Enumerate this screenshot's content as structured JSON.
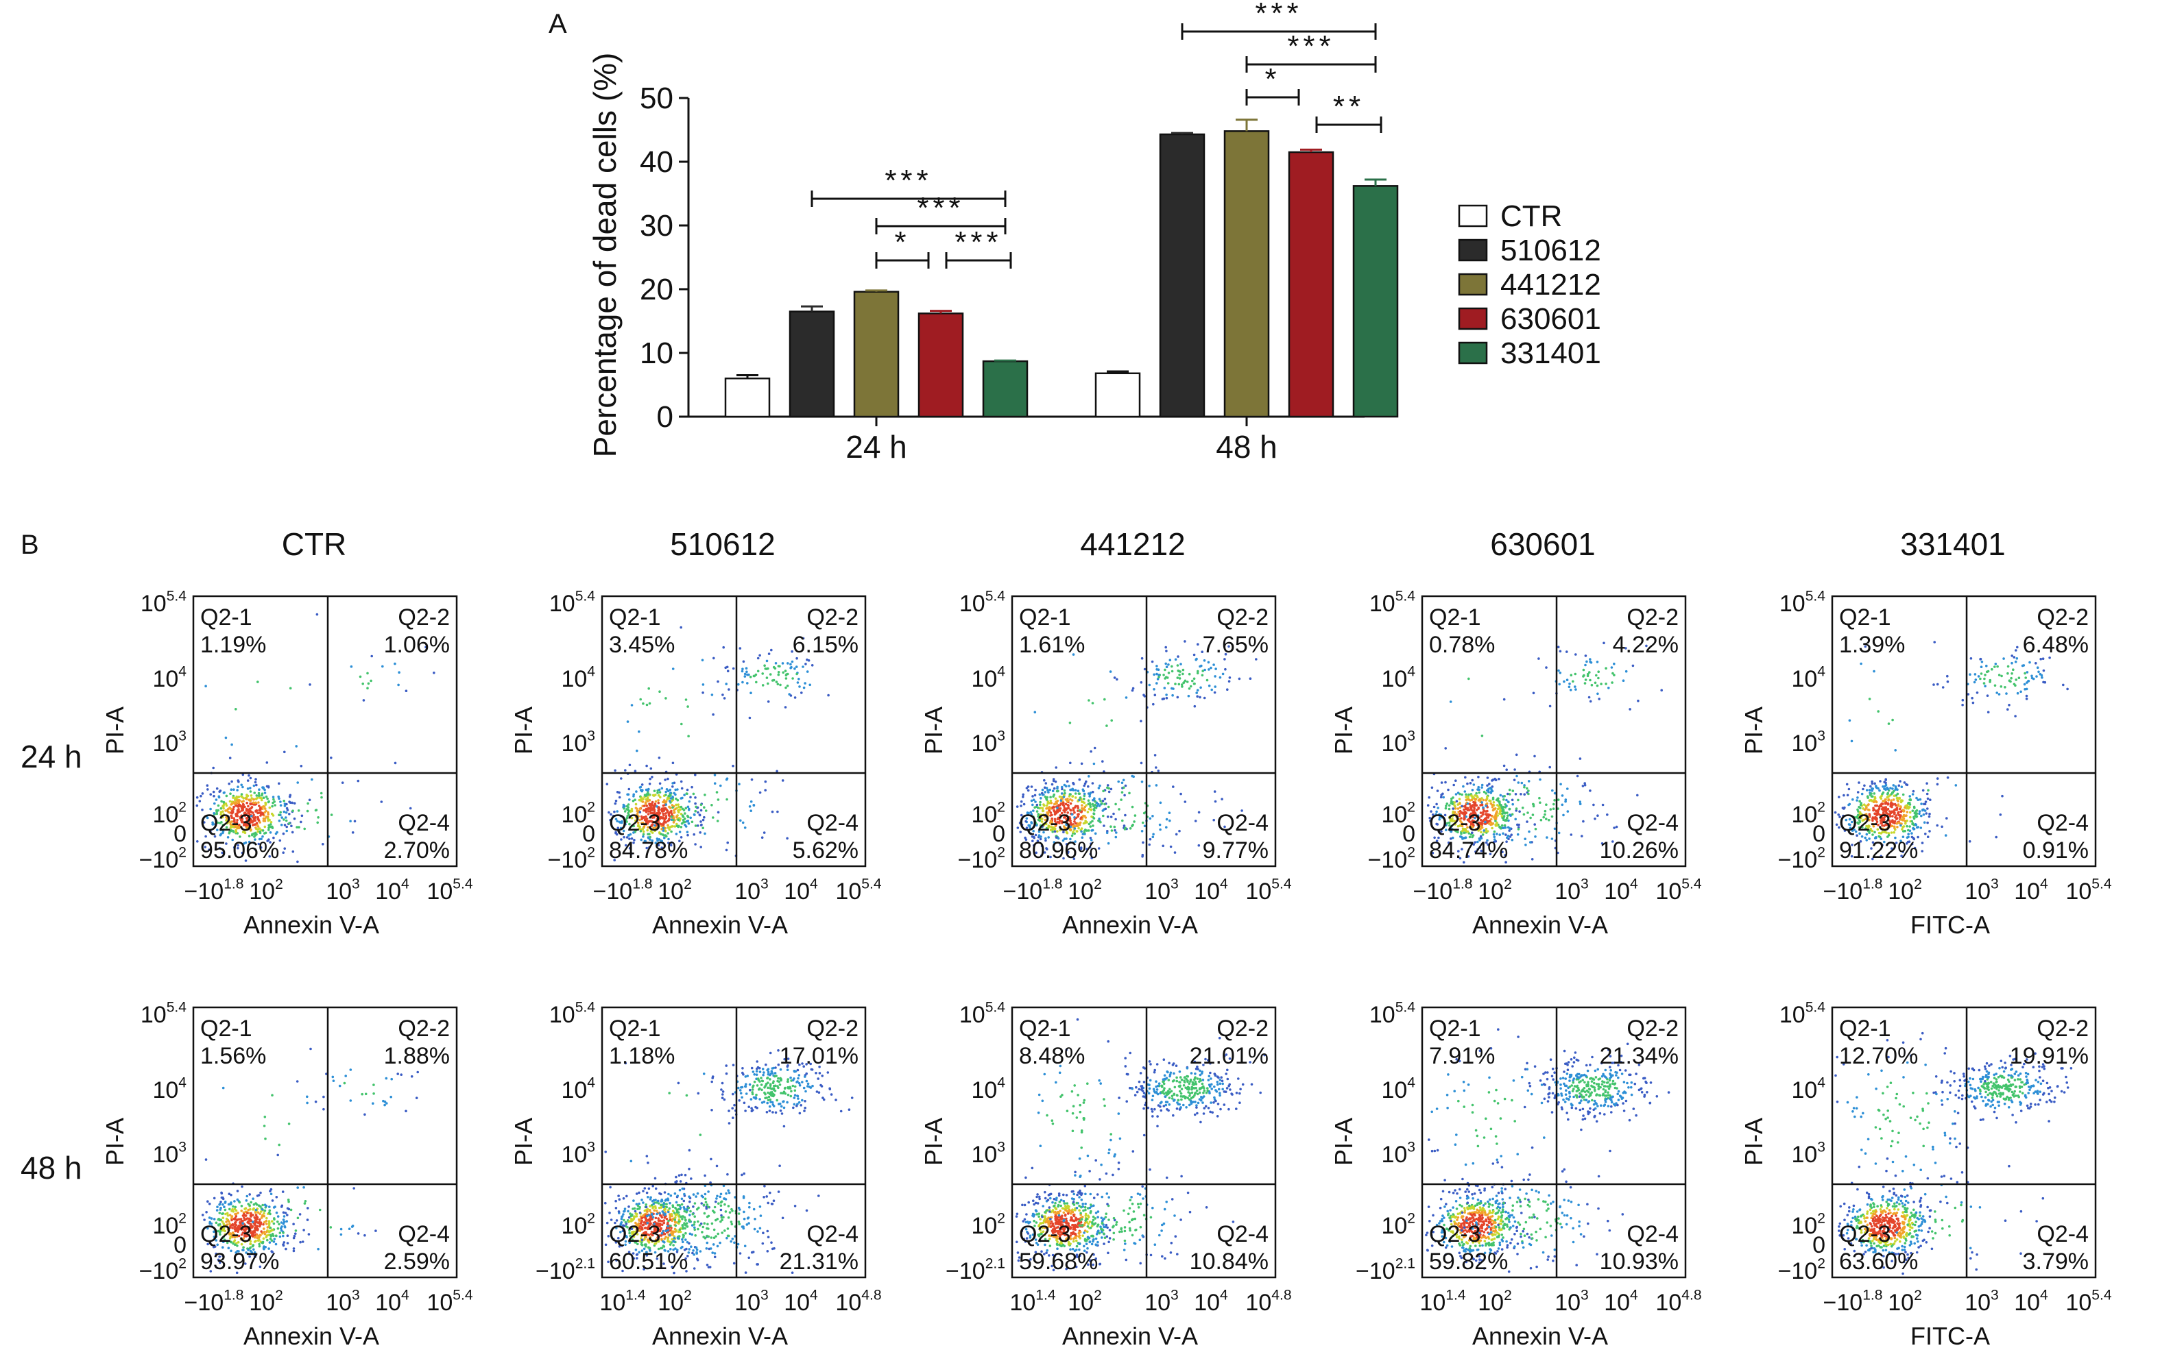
{
  "panel_a": {
    "label": "A",
    "ylabel": "Percentage of dead cells (%)",
    "yticks": [
      "0",
      "10",
      "20",
      "30",
      "40",
      "50"
    ],
    "legend": [
      {
        "name": "CTR",
        "color": "#ffffff"
      },
      {
        "name": "510612",
        "color": "#2b2b2b"
      },
      {
        "name": "441212",
        "color": "#7d7538"
      },
      {
        "name": "630601",
        "color": "#9f1c22"
      },
      {
        "name": "331401",
        "color": "#2b7049"
      }
    ],
    "groups": [
      "24 h",
      "48 h"
    ]
  },
  "chart_data": {
    "type": "bar",
    "categories": [
      "24 h",
      "48 h"
    ],
    "ylabel": "Percentage of dead cells (%)",
    "ylim": [
      0,
      50
    ],
    "grid": false,
    "legend_position": "right",
    "series": [
      {
        "name": "CTR",
        "color": "#ffffff",
        "values": [
          6.0,
          6.8
        ],
        "errors": [
          0.5,
          0.3
        ]
      },
      {
        "name": "510612",
        "color": "#2b2b2b",
        "values": [
          16.5,
          44.3
        ],
        "errors": [
          0.8,
          0.2
        ]
      },
      {
        "name": "441212",
        "color": "#7d7538",
        "values": [
          19.6,
          44.8
        ],
        "errors": [
          0.2,
          1.8
        ]
      },
      {
        "name": "630601",
        "color": "#9f1c22",
        "values": [
          16.2,
          41.5
        ],
        "errors": [
          0.4,
          0.4
        ]
      },
      {
        "name": "331401",
        "color": "#2b7049",
        "values": [
          8.7,
          36.2
        ],
        "errors": [
          0.1,
          1.0
        ]
      }
    ],
    "significance": [
      {
        "group": 0,
        "from": 1,
        "to": 4,
        "label": "***"
      },
      {
        "group": 0,
        "from": 2,
        "to": 4,
        "label": "***"
      },
      {
        "group": 0,
        "from": 2,
        "to": 3,
        "label": "*"
      },
      {
        "group": 0,
        "from": 3,
        "to": 4,
        "label": "***"
      },
      {
        "group": 1,
        "from": 1,
        "to": 4,
        "label": "***"
      },
      {
        "group": 1,
        "from": 2,
        "to": 4,
        "label": "***"
      },
      {
        "group": 1,
        "from": 2,
        "to": 3,
        "label": "*"
      },
      {
        "group": 1,
        "from": 3,
        "to": 4,
        "label": "**"
      }
    ]
  },
  "panel_b": {
    "label": "B",
    "columns": [
      "CTR",
      "510612",
      "441212",
      "630601",
      "331401"
    ],
    "rows": [
      "24 h",
      "48 h"
    ],
    "ylabel": "PI-A",
    "quadrant_names": [
      "Q2-1",
      "Q2-2",
      "Q2-3",
      "Q2-4"
    ],
    "yticks_common": {
      "top": "10",
      "top_exp": "5.4",
      "t4": "10",
      "t4_exp": "4",
      "t3": "10",
      "t3_exp": "3",
      "t2": "10",
      "t2_exp": "2",
      "zero": "0"
    },
    "xticks_common": {
      "t3": "10",
      "t3_exp": "3",
      "t4": "10",
      "t4_exp": "4"
    },
    "plots": [
      {
        "xlabel": "Annexin V-A",
        "q1": "1.19%",
        "q2": "1.06%",
        "q3": "95.06%",
        "q4": "2.70%",
        "xmin": "−10",
        "xmin_exp": "1.8",
        "xmax": "10",
        "xmax_exp": "5.4",
        "ymin": "−10",
        "ymin_exp": "2",
        "show_y2": "true"
      },
      {
        "xlabel": "Annexin V-A",
        "q1": "3.45%",
        "q2": "6.15%",
        "q3": "84.78%",
        "q4": "5.62%",
        "xmin": "−10",
        "xmin_exp": "1.8",
        "xmax": "10",
        "xmax_exp": "5.4",
        "ymin": "−10",
        "ymin_exp": "2",
        "show_y2": "true"
      },
      {
        "xlabel": "Annexin V-A",
        "q1": "1.61%",
        "q2": "7.65%",
        "q3": "80.96%",
        "q4": "9.77%",
        "xmin": "−10",
        "xmin_exp": "1.8",
        "xmax": "10",
        "xmax_exp": "5.4",
        "ymin": "−10",
        "ymin_exp": "2",
        "show_y2": "true"
      },
      {
        "xlabel": "Annexin V-A",
        "q1": "0.78%",
        "q2": "4.22%",
        "q3": "84.74%",
        "q4": "10.26%",
        "xmin": "−10",
        "xmin_exp": "1.8",
        "xmax": "10",
        "xmax_exp": "5.4",
        "ymin": "−10",
        "ymin_exp": "2",
        "show_y2": "true"
      },
      {
        "xlabel": "FITC-A",
        "q1": "1.39%",
        "q2": "6.48%",
        "q3": "91.22%",
        "q4": "0.91%",
        "xmin": "−10",
        "xmin_exp": "1.8",
        "xmax": "10",
        "xmax_exp": "5.4",
        "ymin": "−10",
        "ymin_exp": "2",
        "show_y2": "true"
      },
      {
        "xlabel": "Annexin V-A",
        "q1": "1.56%",
        "q2": "1.88%",
        "q3": "93.97%",
        "q4": "2.59%",
        "xmin": "−10",
        "xmin_exp": "1.8",
        "xmax": "10",
        "xmax_exp": "5.4",
        "ymin": "−10",
        "ymin_exp": "2",
        "show_y2": "true"
      },
      {
        "xlabel": "Annexin V-A",
        "q1": "1.18%",
        "q2": "17.01%",
        "q3": "60.51%",
        "q4": "21.31%",
        "xmin": "10",
        "xmin_exp": "1.4",
        "xmax": "10",
        "xmax_exp": "4.8",
        "ymin": "−10",
        "ymin_exp": "2.1",
        "show_y2": "false"
      },
      {
        "xlabel": "Annexin V-A",
        "q1": "8.48%",
        "q2": "21.01%",
        "q3": "59.68%",
        "q4": "10.84%",
        "xmin": "10",
        "xmin_exp": "1.4",
        "xmax": "10",
        "xmax_exp": "4.8",
        "ymin": "−10",
        "ymin_exp": "2.1",
        "show_y2": "false"
      },
      {
        "xlabel": "Annexin V-A",
        "q1": "7.91%",
        "q2": "21.34%",
        "q3": "59.82%",
        "q4": "10.93%",
        "xmin": "10",
        "xmin_exp": "1.4",
        "xmax": "10",
        "xmax_exp": "4.8",
        "ymin": "−10",
        "ymin_exp": "2.1",
        "show_y2": "false"
      },
      {
        "xlabel": "FITC-A",
        "q1": "12.70%",
        "q2": "19.91%",
        "q3": "63.60%",
        "q4": "3.79%",
        "xmin": "−10",
        "xmin_exp": "1.8",
        "xmax": "10",
        "xmax_exp": "5.4",
        "ymin": "−10",
        "ymin_exp": "2",
        "show_y2": "true"
      }
    ]
  }
}
